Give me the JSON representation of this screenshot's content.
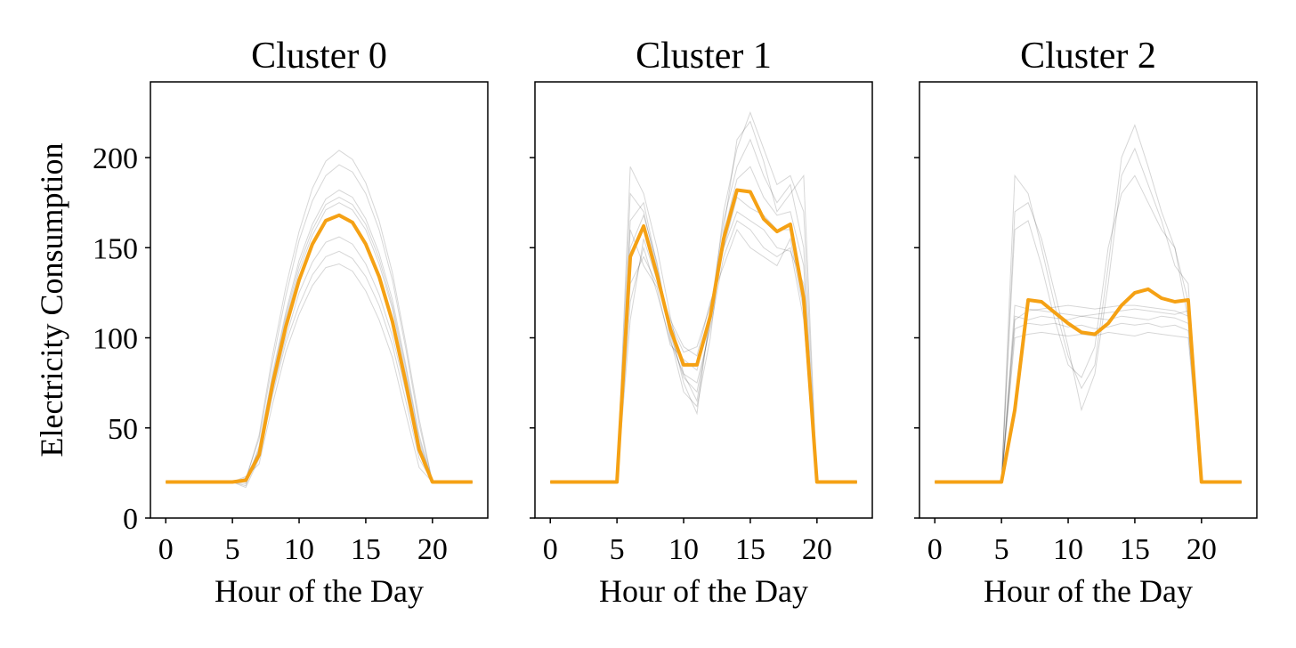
{
  "figure": {
    "ylabel": "Electricity Consumption",
    "xlabel": "Hour of the Day",
    "x_ticks": [
      0,
      5,
      10,
      15,
      20
    ],
    "y_ticks": [
      0,
      50,
      100,
      150,
      200
    ],
    "mean_color": "#f5a114",
    "member_color": "#000000",
    "shared_y": true
  },
  "chart_data": [
    {
      "type": "line",
      "title": "Cluster 0",
      "xlabel": "Hour of the Day",
      "ylabel": "Electricity Consumption",
      "xlim": [
        -1.15,
        24.15
      ],
      "ylim": [
        0,
        242
      ],
      "x": [
        0,
        1,
        2,
        3,
        4,
        5,
        6,
        7,
        8,
        9,
        10,
        11,
        12,
        13,
        14,
        15,
        16,
        17,
        18,
        19,
        20,
        21,
        22,
        23
      ],
      "series": [
        {
          "role": "mean",
          "values": [
            20,
            20,
            20,
            20,
            20,
            20,
            21,
            35,
            74,
            106,
            132,
            152,
            165,
            168,
            164,
            152,
            134,
            109,
            75,
            38,
            20,
            20,
            20,
            20
          ]
        },
        {
          "role": "member",
          "values": [
            20,
            20,
            20,
            20,
            20,
            20,
            22,
            44,
            86,
            123,
            154,
            176,
            190,
            196,
            192,
            180,
            160,
            132,
            94,
            52,
            20,
            20,
            20,
            20
          ]
        },
        {
          "role": "member",
          "values": [
            20,
            20,
            20,
            20,
            20,
            20,
            19,
            34,
            68,
            97,
            118,
            135,
            145,
            148,
            144,
            134,
            118,
            96,
            65,
            33,
            20,
            20,
            20,
            20
          ]
        },
        {
          "role": "member",
          "values": [
            20,
            20,
            20,
            20,
            20,
            20,
            18,
            40,
            80,
            114,
            143,
            163,
            177,
            182,
            178,
            166,
            147,
            121,
            85,
            46,
            20,
            20,
            20,
            20
          ]
        },
        {
          "role": "member",
          "values": [
            20,
            20,
            20,
            20,
            20,
            20,
            23,
            30,
            63,
            92,
            113,
            129,
            139,
            141,
            137,
            126,
            110,
            89,
            58,
            28,
            20,
            20,
            20,
            20
          ]
        },
        {
          "role": "member",
          "values": [
            20,
            20,
            20,
            20,
            20,
            20,
            20,
            37,
            76,
            110,
            137,
            157,
            171,
            175,
            171,
            160,
            141,
            116,
            80,
            42,
            20,
            20,
            20,
            20
          ]
        },
        {
          "role": "member",
          "values": [
            20,
            20,
            20,
            20,
            20,
            20,
            21,
            46,
            90,
            128,
            159,
            183,
            198,
            204,
            199,
            186,
            165,
            136,
            97,
            55,
            20,
            20,
            20,
            20
          ]
        },
        {
          "role": "member",
          "values": [
            20,
            20,
            20,
            20,
            20,
            20,
            17,
            33,
            70,
            100,
            125,
            142,
            153,
            156,
            152,
            141,
            124,
            101,
            70,
            36,
            20,
            20,
            20,
            20
          ]
        },
        {
          "role": "member",
          "values": [
            20,
            20,
            20,
            20,
            20,
            20,
            22,
            38,
            78,
            112,
            140,
            160,
            174,
            178,
            174,
            163,
            144,
            118,
            83,
            44,
            20,
            20,
            20,
            20
          ]
        }
      ]
    },
    {
      "type": "line",
      "title": "Cluster 1",
      "xlabel": "Hour of the Day",
      "ylabel": "",
      "xlim": [
        -1.15,
        24.15
      ],
      "ylim": [
        0,
        242
      ],
      "x": [
        0,
        1,
        2,
        3,
        4,
        5,
        6,
        7,
        8,
        9,
        10,
        11,
        12,
        13,
        14,
        15,
        16,
        17,
        18,
        19,
        20,
        21,
        22,
        23
      ],
      "series": [
        {
          "role": "mean",
          "values": [
            20,
            20,
            20,
            20,
            20,
            20,
            145,
            162,
            135,
            105,
            85,
            85,
            112,
            155,
            182,
            181,
            166,
            159,
            163,
            122,
            20,
            20,
            20,
            20
          ]
        },
        {
          "role": "member",
          "values": [
            20,
            20,
            20,
            20,
            20,
            20,
            195,
            180,
            150,
            112,
            80,
            65,
            110,
            170,
            205,
            225,
            205,
            185,
            190,
            170,
            20,
            20,
            20,
            20
          ]
        },
        {
          "role": "member",
          "values": [
            20,
            20,
            20,
            20,
            20,
            20,
            120,
            150,
            125,
            98,
            80,
            75,
            105,
            145,
            165,
            160,
            150,
            145,
            150,
            110,
            20,
            20,
            20,
            20
          ]
        },
        {
          "role": "member",
          "values": [
            20,
            20,
            20,
            20,
            20,
            20,
            165,
            175,
            140,
            105,
            75,
            58,
            115,
            165,
            195,
            210,
            190,
            175,
            185,
            150,
            20,
            20,
            20,
            20
          ]
        },
        {
          "role": "member",
          "values": [
            20,
            20,
            20,
            20,
            20,
            20,
            130,
            145,
            130,
            108,
            92,
            95,
            118,
            150,
            170,
            165,
            160,
            150,
            148,
            130,
            20,
            20,
            20,
            20
          ]
        },
        {
          "role": "member",
          "values": [
            20,
            20,
            20,
            20,
            20,
            20,
            180,
            170,
            138,
            100,
            70,
            62,
            100,
            160,
            210,
            220,
            198,
            170,
            180,
            190,
            20,
            20,
            20,
            20
          ]
        },
        {
          "role": "member",
          "values": [
            20,
            20,
            20,
            20,
            20,
            20,
            110,
            155,
            132,
            110,
            95,
            90,
            120,
            140,
            160,
            150,
            145,
            140,
            155,
            115,
            20,
            20,
            20,
            20
          ]
        },
        {
          "role": "member",
          "values": [
            20,
            20,
            20,
            20,
            20,
            20,
            150,
            168,
            142,
            102,
            78,
            70,
            108,
            158,
            188,
            195,
            178,
            168,
            170,
            140,
            20,
            20,
            20,
            20
          ]
        },
        {
          "role": "member",
          "values": [
            20,
            20,
            20,
            20,
            20,
            20,
            160,
            140,
            128,
            96,
            88,
            82,
            112,
            150,
            178,
            172,
            168,
            160,
            160,
            125,
            20,
            20,
            20,
            20
          ]
        }
      ]
    },
    {
      "type": "line",
      "title": "Cluster 2",
      "xlabel": "Hour of the Day",
      "ylabel": "",
      "xlim": [
        -1.15,
        24.15
      ],
      "ylim": [
        0,
        242
      ],
      "x": [
        0,
        1,
        2,
        3,
        4,
        5,
        6,
        7,
        8,
        9,
        10,
        11,
        12,
        13,
        14,
        15,
        16,
        17,
        18,
        19,
        20,
        21,
        22,
        23
      ],
      "series": [
        {
          "role": "mean",
          "values": [
            20,
            20,
            20,
            20,
            20,
            20,
            60,
            121,
            120,
            114,
            108,
            103,
            102,
            108,
            118,
            125,
            127,
            122,
            120,
            121,
            20,
            20,
            20,
            20
          ]
        },
        {
          "role": "member",
          "values": [
            20,
            20,
            20,
            20,
            20,
            20,
            110,
            115,
            116,
            117,
            118,
            117,
            116,
            117,
            118,
            118,
            117,
            116,
            115,
            112,
            20,
            20,
            20,
            20
          ]
        },
        {
          "role": "member",
          "values": [
            20,
            20,
            20,
            20,
            20,
            20,
            105,
            108,
            107,
            108,
            106,
            107,
            105,
            106,
            108,
            107,
            108,
            106,
            107,
            104,
            20,
            20,
            20,
            20
          ]
        },
        {
          "role": "member",
          "values": [
            20,
            20,
            20,
            20,
            20,
            20,
            112,
            110,
            112,
            111,
            110,
            112,
            111,
            110,
            112,
            111,
            110,
            112,
            111,
            108,
            20,
            20,
            20,
            20
          ]
        },
        {
          "role": "member",
          "values": [
            20,
            20,
            20,
            20,
            20,
            20,
            100,
            102,
            103,
            102,
            101,
            102,
            101,
            103,
            102,
            101,
            103,
            102,
            101,
            100,
            20,
            20,
            20,
            20
          ]
        },
        {
          "role": "member",
          "values": [
            20,
            20,
            20,
            20,
            20,
            20,
            190,
            180,
            150,
            118,
            90,
            72,
            85,
            140,
            200,
            218,
            195,
            170,
            150,
            120,
            20,
            20,
            20,
            20
          ]
        },
        {
          "role": "member",
          "values": [
            20,
            20,
            20,
            20,
            20,
            20,
            170,
            175,
            155,
            125,
            95,
            60,
            80,
            130,
            190,
            205,
            185,
            165,
            140,
            130,
            20,
            20,
            20,
            20
          ]
        },
        {
          "role": "member",
          "values": [
            20,
            20,
            20,
            20,
            20,
            20,
            160,
            165,
            140,
            110,
            85,
            78,
            95,
            150,
            180,
            190,
            175,
            160,
            150,
            110,
            20,
            20,
            20,
            20
          ]
        },
        {
          "role": "member",
          "values": [
            20,
            20,
            20,
            20,
            20,
            20,
            118,
            116,
            115,
            114,
            113,
            112,
            113,
            114,
            115,
            116,
            115,
            114,
            113,
            115,
            20,
            20,
            20,
            20
          ]
        }
      ]
    }
  ]
}
